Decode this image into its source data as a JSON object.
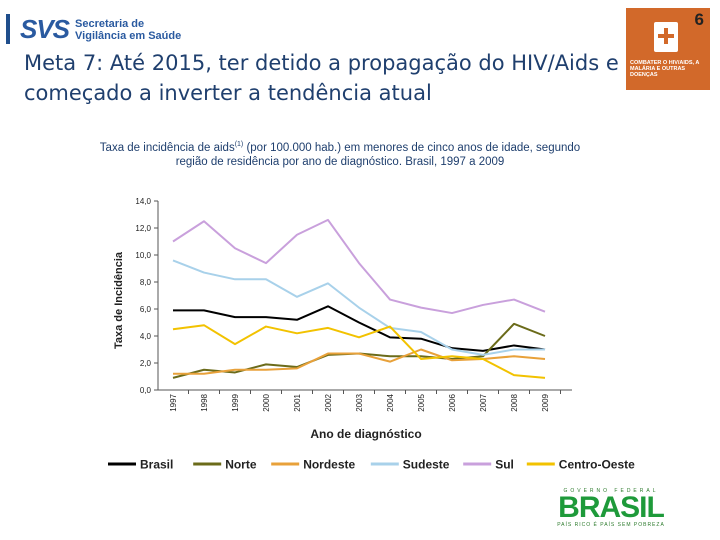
{
  "header": {
    "logo_mark": "SVS",
    "logo_line1": "Secretaria de",
    "logo_line2": "Vigilância em Saúde",
    "title": "Meta 7: Até 2015, ter detido a propagação do HIV/Aids e começado a inverter a tendência atual"
  },
  "mdg_badge": {
    "number": "6",
    "text": "COMBATER O HIV/AIDS, A MALÁRIA E OUTRAS DOENÇAS"
  },
  "subtitle": {
    "part1": "Taxa de incidência de aids",
    "sup": "(1)",
    "part2": " (por 100.000 hab.) em menores de cinco anos de idade, segundo",
    "line2": "região de residência por ano de diagnóstico. Brasil, 1997 a 2009"
  },
  "footer_logo": {
    "top": "GOVERNO FEDERAL",
    "word": "BRASIL",
    "bottom": "PAÍS RICO É PAÍS SEM POBREZA"
  },
  "chart_data": {
    "type": "line",
    "title": "",
    "xlabel": "Ano de diagnóstico",
    "ylabel": "Taxa de Incidência",
    "x": [
      "1997",
      "1998",
      "1999",
      "2000",
      "2001",
      "2002",
      "2003",
      "2004",
      "2005",
      "2006",
      "2007",
      "2008",
      "2009"
    ],
    "ylim": [
      0,
      14
    ],
    "yticks": [
      "0,0",
      "2,0",
      "4,0",
      "6,0",
      "8,0",
      "10,0",
      "12,0",
      "14,0"
    ],
    "grid": false,
    "legend_position": "bottom",
    "series": [
      {
        "name": "Brasil",
        "color": "#000000",
        "values": [
          5.9,
          5.9,
          5.4,
          5.4,
          5.2,
          6.2,
          5.0,
          3.9,
          3.8,
          3.1,
          2.9,
          3.3,
          3.0
        ]
      },
      {
        "name": "Norte",
        "color": "#6b6b1a",
        "values": [
          0.9,
          1.5,
          1.3,
          1.9,
          1.7,
          2.6,
          2.7,
          2.5,
          2.5,
          2.3,
          2.5,
          4.9,
          4.0
        ]
      },
      {
        "name": "Nordeste",
        "color": "#e8a13a",
        "values": [
          1.2,
          1.2,
          1.5,
          1.5,
          1.6,
          2.7,
          2.7,
          2.1,
          3.0,
          2.2,
          2.3,
          2.5,
          2.3
        ]
      },
      {
        "name": "Sudeste",
        "color": "#a8d1ea",
        "values": [
          9.6,
          8.7,
          8.2,
          8.2,
          6.9,
          7.9,
          6.1,
          4.6,
          4.3,
          3.0,
          2.6,
          3.0,
          3.0
        ]
      },
      {
        "name": "Sul",
        "color": "#c9a0dc",
        "values": [
          11.0,
          12.5,
          10.5,
          9.4,
          11.5,
          12.6,
          9.4,
          6.7,
          6.1,
          5.7,
          6.3,
          6.7,
          5.8
        ]
      },
      {
        "name": "Centro-Oeste",
        "color": "#f2c200",
        "values": [
          4.5,
          4.8,
          3.4,
          4.7,
          4.2,
          4.6,
          3.9,
          4.7,
          2.3,
          2.5,
          2.3,
          1.1,
          0.9
        ]
      }
    ]
  }
}
